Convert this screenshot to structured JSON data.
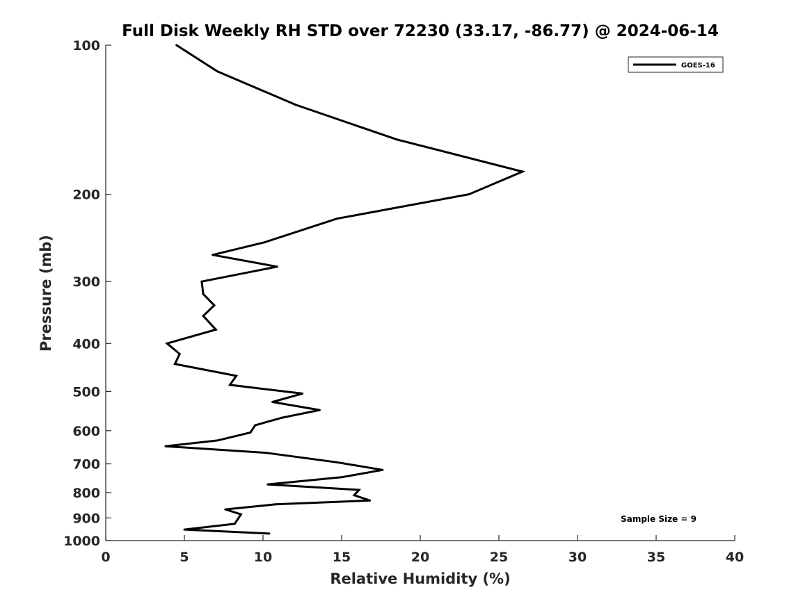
{
  "chart_data": {
    "type": "line",
    "title": "Full Disk Weekly RH STD over 72230 (33.17, -86.77) @ 2024-06-14",
    "xlabel": "Relative Humidity (%)",
    "ylabel": "Pressure (mb)",
    "xlim": [
      0,
      40
    ],
    "ylim": [
      100,
      1000
    ],
    "yscale": "log",
    "yreversed": true,
    "xticks": [
      "0",
      "5",
      "10",
      "15",
      "20",
      "25",
      "30",
      "35",
      "40"
    ],
    "yticks": [
      "100",
      "200",
      "300",
      "400",
      "500",
      "600",
      "700",
      "800",
      "900",
      "1000"
    ],
    "legend": {
      "position": "top-right",
      "entries": [
        "GOES-16"
      ]
    },
    "annotation": "Sample Size = 9",
    "series": [
      {
        "name": "GOES-16",
        "color": "#000000",
        "x": [
          4.5,
          7.1,
          12.1,
          18.5,
          26.5,
          23.1,
          14.7,
          10.1,
          6.8,
          10.9,
          6.1,
          6.2,
          6.9,
          6.2,
          7.0,
          3.9,
          4.7,
          4.4,
          8.3,
          7.9,
          12.5,
          10.6,
          13.6,
          11.2,
          9.5,
          9.2,
          7.1,
          3.8,
          10.2,
          14.7,
          17.6,
          15.0,
          10.3,
          16.1,
          15.8,
          16.8,
          10.8,
          7.6,
          8.6,
          8.4,
          8.2,
          5.0,
          10.4
        ],
        "y": [
          100,
          113,
          132,
          155,
          180,
          200,
          224,
          250,
          265,
          280,
          300,
          318,
          335,
          352,
          375,
          400,
          420,
          440,
          465,
          485,
          505,
          525,
          545,
          565,
          585,
          605,
          628,
          645,
          665,
          695,
          720,
          745,
          770,
          790,
          810,
          830,
          845,
          865,
          885,
          905,
          925,
          950,
          968
        ]
      }
    ]
  }
}
